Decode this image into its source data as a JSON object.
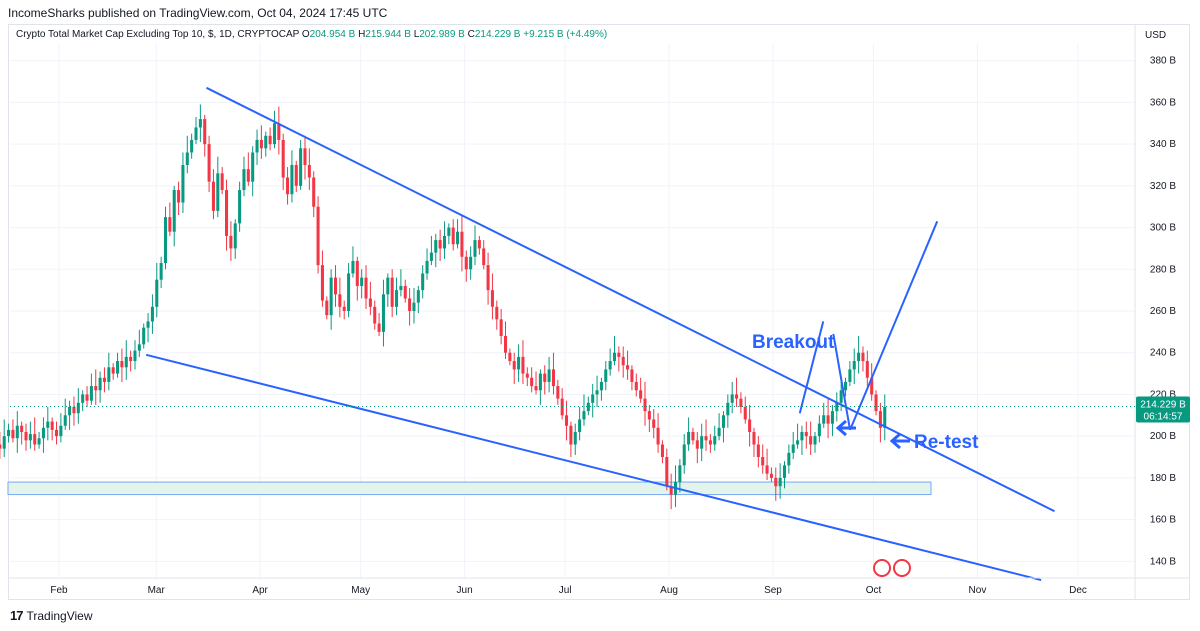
{
  "publisher_line": "IncomeSharks published on TradingView.com, Oct 04, 2024 17:45 UTC",
  "legend": {
    "symbol": "Crypto Total Market Cap Excluding Top 10, $, 1D, CRYPTOCAP",
    "o_label": "O",
    "o": "204.954 B",
    "h_label": "H",
    "h": "215.944 B",
    "l_label": "L",
    "l": "202.989 B",
    "c_label": "C",
    "c": "214.229 B",
    "change": "+9.215 B (+4.49%)"
  },
  "currency": "USD",
  "footer": {
    "logo": "17",
    "brand": "TradingView"
  },
  "colors": {
    "up": "#089981",
    "down": "#f23645",
    "trend": "#2962ff",
    "zone_fill": "#e3f4ec",
    "zone_stroke": "#7aa7f5",
    "price_tag": "#089981"
  },
  "chart_data": {
    "type": "candlestick",
    "y_unit": "B",
    "ylim": [
      132,
      388
    ],
    "y_ticks": [
      {
        "v": 380,
        "label": "380 B"
      },
      {
        "v": 360,
        "label": "360 B"
      },
      {
        "v": 340,
        "label": "340 B"
      },
      {
        "v": 320,
        "label": "320 B"
      },
      {
        "v": 300,
        "label": "300 B"
      },
      {
        "v": 280,
        "label": "280 B"
      },
      {
        "v": 260,
        "label": "260 B"
      },
      {
        "v": 240,
        "label": "240 B"
      },
      {
        "v": 220,
        "label": "220 B"
      },
      {
        "v": 200,
        "label": "200 B"
      },
      {
        "v": 180,
        "label": "180 B"
      },
      {
        "v": 160,
        "label": "160 B"
      },
      {
        "v": 140,
        "label": "140 B"
      }
    ],
    "x_ticks": [
      {
        "d": 31,
        "label": "Feb"
      },
      {
        "d": 60,
        "label": "Mar"
      },
      {
        "d": 91,
        "label": "Apr"
      },
      {
        "d": 121,
        "label": "May"
      },
      {
        "d": 152,
        "label": "Jun"
      },
      {
        "d": 182,
        "label": "Jul"
      },
      {
        "d": 213,
        "label": "Aug"
      },
      {
        "d": 244,
        "label": "Sep"
      },
      {
        "d": 274,
        "label": "Oct"
      },
      {
        "d": 305,
        "label": "Nov"
      },
      {
        "d": 335,
        "label": "Dec"
      }
    ],
    "x_range_days": [
      31,
      335
    ],
    "last_price": {
      "value": 214.229,
      "label": "214.229 B",
      "countdown": "06:14:57"
    },
    "closes": [
      199,
      195,
      190,
      183,
      188,
      192,
      197,
      199,
      196,
      194,
      200,
      203,
      199,
      205,
      202,
      198,
      201,
      196,
      199,
      204,
      207,
      203,
      200,
      205,
      210,
      214,
      211,
      216,
      220,
      217,
      224,
      222,
      228,
      226,
      233,
      230,
      236,
      233,
      238,
      236,
      241,
      244,
      252,
      255,
      262,
      275,
      283,
      305,
      298,
      318,
      312,
      330,
      336,
      342,
      348,
      352,
      340,
      322,
      308,
      326,
      318,
      296,
      290,
      302,
      318,
      328,
      322,
      336,
      342,
      338,
      344,
      340,
      350,
      342,
      324,
      316,
      330,
      320,
      338,
      330,
      324,
      310,
      282,
      265,
      258,
      276,
      268,
      262,
      260,
      278,
      284,
      272,
      276,
      266,
      262,
      254,
      250,
      268,
      276,
      262,
      270,
      272,
      266,
      260,
      264,
      270,
      278,
      284,
      288,
      294,
      290,
      296,
      300,
      292,
      298,
      286,
      280,
      286,
      294,
      290,
      282,
      270,
      262,
      256,
      248,
      240,
      236,
      232,
      238,
      230,
      228,
      224,
      222,
      230,
      226,
      232,
      224,
      218,
      210,
      205,
      196,
      202,
      208,
      212,
      216,
      220,
      222,
      226,
      232,
      236,
      240,
      238,
      234,
      232,
      226,
      222,
      218,
      212,
      208,
      204,
      196,
      190,
      176,
      172,
      178,
      186,
      196,
      202,
      198,
      194,
      200,
      198,
      196,
      200,
      204,
      210,
      216,
      220,
      218,
      214,
      208,
      202,
      196,
      190,
      186,
      182,
      180,
      176,
      180,
      186,
      192,
      196,
      198,
      202,
      200,
      196,
      200,
      206,
      210,
      206,
      212,
      216,
      222,
      226,
      232,
      236,
      240,
      236,
      228,
      220,
      212,
      204,
      214
    ]
  },
  "annotations": {
    "breakout": "Breakout",
    "retest": "Re-test"
  }
}
